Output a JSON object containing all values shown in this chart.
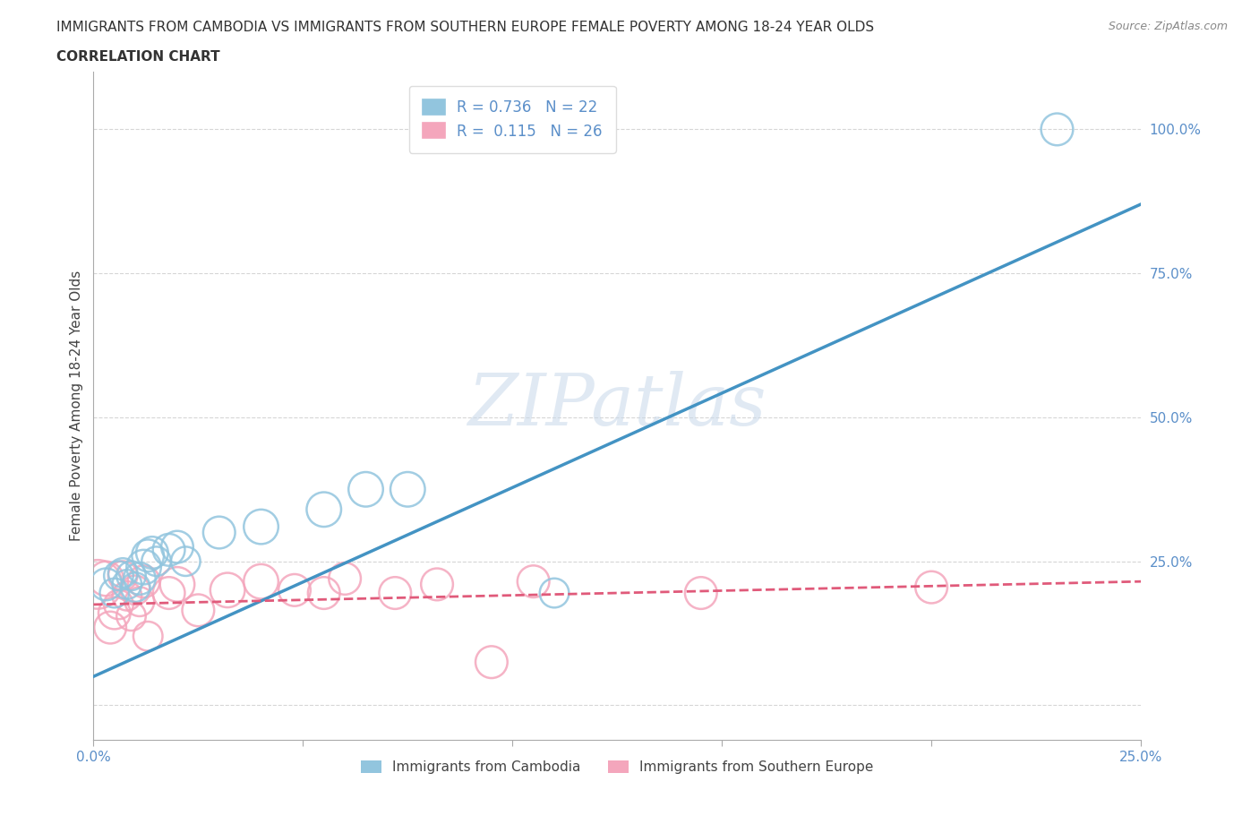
{
  "title_line1": "IMMIGRANTS FROM CAMBODIA VS IMMIGRANTS FROM SOUTHERN EUROPE FEMALE POVERTY AMONG 18-24 YEAR OLDS",
  "title_line2": "CORRELATION CHART",
  "source_text": "Source: ZipAtlas.com",
  "ylabel": "Female Poverty Among 18-24 Year Olds",
  "xlim": [
    0.0,
    0.25
  ],
  "ylim": [
    -0.06,
    1.1
  ],
  "xticks": [
    0.0,
    0.05,
    0.1,
    0.15,
    0.2,
    0.25
  ],
  "xtick_labels": [
    "0.0%",
    "",
    "",
    "",
    "",
    "25.0%"
  ],
  "ytick_positions": [
    0.0,
    0.25,
    0.5,
    0.75,
    1.0
  ],
  "ytick_labels": [
    "",
    "25.0%",
    "50.0%",
    "75.0%",
    "100.0%"
  ],
  "watermark": "ZIPatlas",
  "legend_r1": "R = 0.736",
  "legend_n1": "N = 22",
  "legend_r2": "R =  0.115",
  "legend_n2": "N = 26",
  "color_cambodia": "#92c5de",
  "color_s_europe": "#f4a6bc",
  "line_color_cambodia": "#4393c3",
  "line_color_s_europe": "#e05a7a",
  "background_color": "#ffffff",
  "grid_color": "#cccccc",
  "blue_line_x0": 0.0,
  "blue_line_y0": 0.05,
  "blue_line_x1": 0.25,
  "blue_line_y1": 0.87,
  "pink_line_x0": 0.0,
  "pink_line_y0": 0.175,
  "pink_line_x1": 0.25,
  "pink_line_y1": 0.215,
  "cambodia_x": [
    0.003,
    0.005,
    0.006,
    0.007,
    0.008,
    0.009,
    0.01,
    0.011,
    0.012,
    0.013,
    0.014,
    0.015,
    0.018,
    0.02,
    0.022,
    0.03,
    0.04,
    0.055,
    0.065,
    0.075,
    0.11,
    0.23
  ],
  "cambodia_y": [
    0.21,
    0.195,
    0.225,
    0.23,
    0.21,
    0.225,
    0.205,
    0.22,
    0.24,
    0.26,
    0.265,
    0.25,
    0.27,
    0.275,
    0.25,
    0.3,
    0.31,
    0.34,
    0.375,
    0.375,
    0.195,
    1.0
  ],
  "cambodia_size": [
    6,
    5,
    5,
    5,
    5,
    5,
    5,
    6,
    7,
    6,
    6,
    5,
    6,
    6,
    5,
    6,
    7,
    7,
    7,
    7,
    5,
    6
  ],
  "s_europe_x": [
    0.001,
    0.003,
    0.004,
    0.005,
    0.006,
    0.007,
    0.008,
    0.009,
    0.01,
    0.011,
    0.012,
    0.013,
    0.018,
    0.02,
    0.025,
    0.032,
    0.04,
    0.048,
    0.055,
    0.06,
    0.072,
    0.082,
    0.095,
    0.105,
    0.145,
    0.2
  ],
  "s_europe_y": [
    0.21,
    0.22,
    0.135,
    0.16,
    0.175,
    0.225,
    0.19,
    0.155,
    0.2,
    0.18,
    0.215,
    0.12,
    0.195,
    0.21,
    0.165,
    0.2,
    0.215,
    0.2,
    0.195,
    0.22,
    0.195,
    0.21,
    0.075,
    0.215,
    0.195,
    0.205
  ],
  "s_europe_size": [
    14,
    7,
    6,
    6,
    5,
    5,
    5,
    5,
    5,
    5,
    6,
    5,
    6,
    7,
    6,
    7,
    7,
    6,
    6,
    6,
    6,
    6,
    6,
    6,
    6,
    6
  ],
  "label_cambodia": "Immigrants from Cambodia",
  "label_s_europe": "Immigrants from Southern Europe"
}
